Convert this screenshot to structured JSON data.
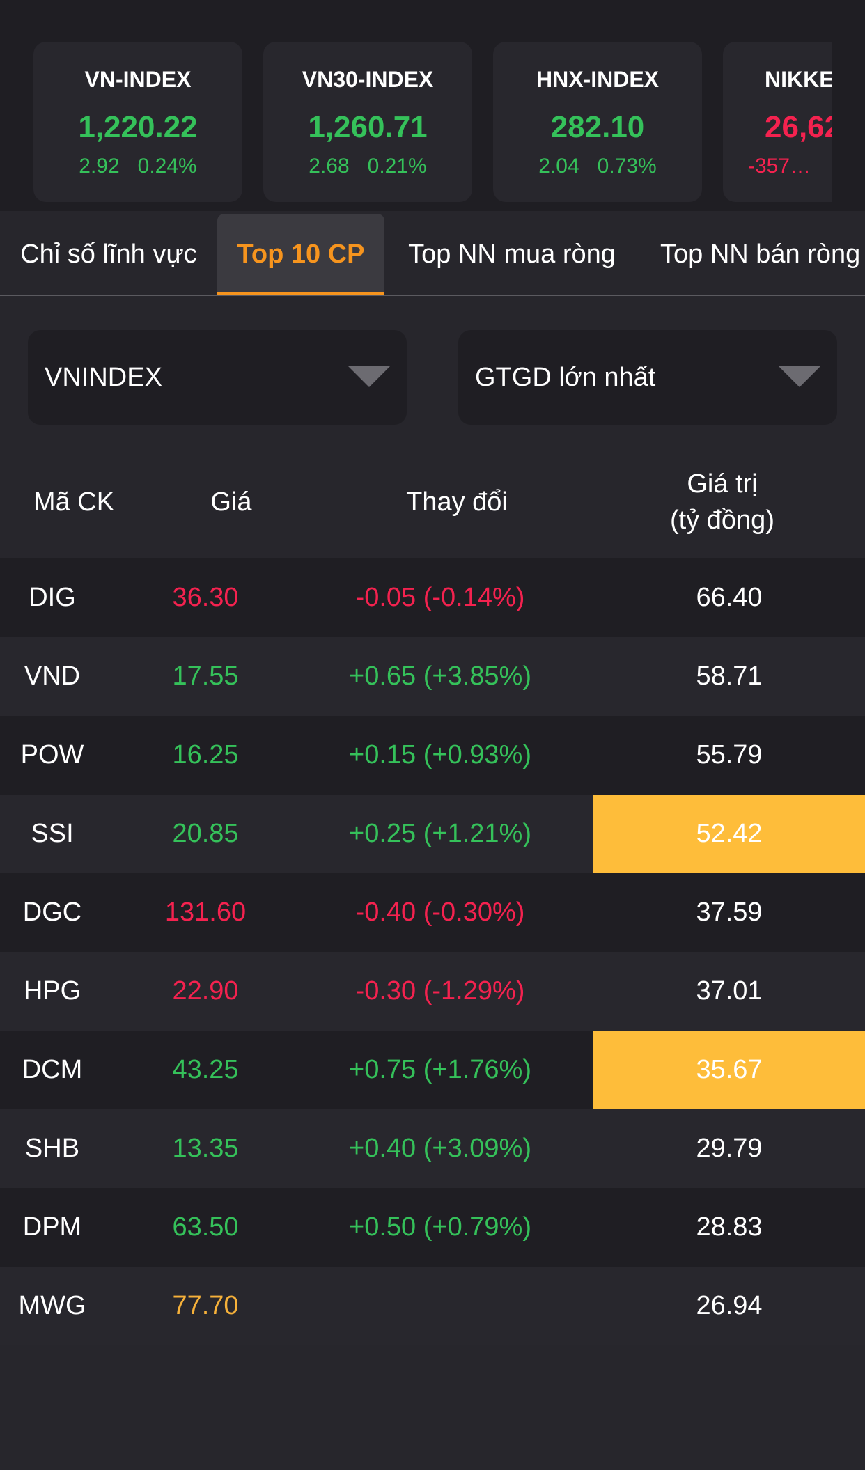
{
  "indices": [
    {
      "name": "VN-INDEX",
      "value": "1,220.22",
      "change": "2.92",
      "percent": "0.24%",
      "trend": "up"
    },
    {
      "name": "VN30-INDEX",
      "value": "1,260.71",
      "change": "2.68",
      "percent": "0.21%",
      "trend": "up"
    },
    {
      "name": "HNX-INDEX",
      "value": "282.10",
      "change": "2.04",
      "percent": "0.73%",
      "trend": "up"
    },
    {
      "name": "NIKKE",
      "value": "26,62",
      "change": "-357…",
      "percent": "",
      "trend": "down"
    }
  ],
  "tabs": [
    {
      "label": "Chỉ số lĩnh vực",
      "active": false
    },
    {
      "label": "Top 10 CP",
      "active": true
    },
    {
      "label": "Top NN mua ròng",
      "active": false
    },
    {
      "label": "Top NN bán ròng",
      "active": false
    }
  ],
  "filters": {
    "exchange": "VNINDEX",
    "criteria": "GTGD lớn nhất"
  },
  "table": {
    "headers": {
      "code": "Mã CK",
      "price": "Giá",
      "change": "Thay đổi",
      "value_line1": "Giá trị",
      "value_line2": "(tỷ đồng)"
    },
    "rows": [
      {
        "code": "DIG",
        "price": "36.30",
        "change": "-0.05 (-0.14%)",
        "value": "66.40",
        "trend": "down",
        "highlight": false
      },
      {
        "code": "VND",
        "price": "17.55",
        "change": "+0.65 (+3.85%)",
        "value": "58.71",
        "trend": "up",
        "highlight": false
      },
      {
        "code": "POW",
        "price": "16.25",
        "change": "+0.15 (+0.93%)",
        "value": "55.79",
        "trend": "up",
        "highlight": false
      },
      {
        "code": "SSI",
        "price": "20.85",
        "change": "+0.25 (+1.21%)",
        "value": "52.42",
        "trend": "up",
        "highlight": true
      },
      {
        "code": "DGC",
        "price": "131.60",
        "change": "-0.40 (-0.30%)",
        "value": "37.59",
        "trend": "down",
        "highlight": false
      },
      {
        "code": "HPG",
        "price": "22.90",
        "change": "-0.30 (-1.29%)",
        "value": "37.01",
        "trend": "down",
        "highlight": false
      },
      {
        "code": "DCM",
        "price": "43.25",
        "change": "+0.75 (+1.76%)",
        "value": "35.67",
        "trend": "up",
        "highlight": true
      },
      {
        "code": "SHB",
        "price": "13.35",
        "change": "+0.40 (+3.09%)",
        "value": "29.79",
        "trend": "up",
        "highlight": false
      },
      {
        "code": "DPM",
        "price": "63.50",
        "change": "+0.50 (+0.79%)",
        "value": "28.83",
        "trend": "up",
        "highlight": false
      },
      {
        "code": "MWG",
        "price": "77.70",
        "change": "",
        "value": "26.94",
        "trend": "ref",
        "highlight": false
      }
    ]
  },
  "colors": {
    "up": "#35c15a",
    "down": "#f4224f",
    "reference": "#f6b13a",
    "accent": "#f6941e",
    "highlight": "#febd3a"
  }
}
